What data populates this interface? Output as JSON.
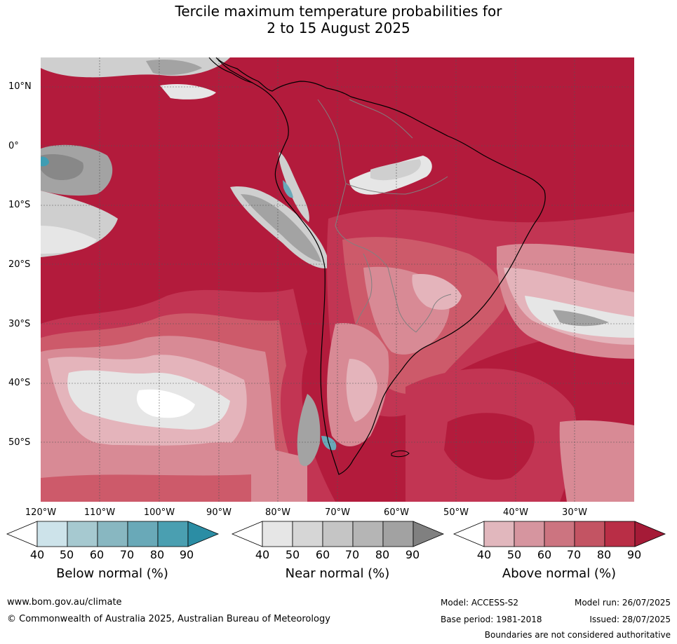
{
  "title_line1": "Tercile maximum temperature probabilities for",
  "title_line2": "2 to 15 August 2025",
  "latitude_labels": [
    "10°N",
    "0°",
    "10°S",
    "20°S",
    "30°S",
    "40°S",
    "50°S"
  ],
  "longitude_labels": [
    "120°W",
    "110°W",
    "100°W",
    "90°W",
    "80°W",
    "70°W",
    "60°W",
    "50°W",
    "40°W",
    "30°W"
  ],
  "colorbars": [
    {
      "title": "Below normal (%)",
      "ticks": [
        "40",
        "50",
        "60",
        "70",
        "80",
        "90"
      ],
      "colors": [
        "#ffffff",
        "#cde3ea",
        "#a6c9d0",
        "#88b7c1",
        "#69a9b8",
        "#4a9fb1",
        "#2b8da4"
      ]
    },
    {
      "title": "Near normal (%)",
      "ticks": [
        "40",
        "50",
        "60",
        "70",
        "80",
        "90"
      ],
      "colors": [
        "#ffffff",
        "#e6e6e6",
        "#d6d6d6",
        "#c5c5c5",
        "#b5b5b5",
        "#a2a2a2",
        "#808080"
      ]
    },
    {
      "title": "Above normal (%)",
      "ticks": [
        "40",
        "50",
        "60",
        "70",
        "80",
        "90"
      ],
      "colors": [
        "#ffffff",
        "#e1b7bd",
        "#d6959f",
        "#cc7480",
        "#c35463",
        "#b92e46",
        "#a51b37"
      ]
    }
  ],
  "footer": {
    "website": "www.bom.gov.au/climate",
    "copyright": "© Commonwealth of Australia 2025, Australian Bureau of Meteorology",
    "model": "Model: ACCESS-S2",
    "base_period": "Base period: 1981-2018",
    "model_run": "Model run: 26/07/2025",
    "issued": "Issued: 28/07/2025",
    "disclaimer": "Boundaries are not considered authoritative"
  },
  "map_colors": {
    "above_90": "#b31b3c",
    "above_80": "#c23553",
    "above_70": "#cd5a6a",
    "above_60": "#d88a95",
    "above_50": "#e4b4bb",
    "near_50": "#e6e6e6",
    "near_60": "#cfcfcf",
    "near_80": "#a3a3a3",
    "near_90": "#888888",
    "below_50": "#cde3ea",
    "below_80": "#3f9db3"
  }
}
